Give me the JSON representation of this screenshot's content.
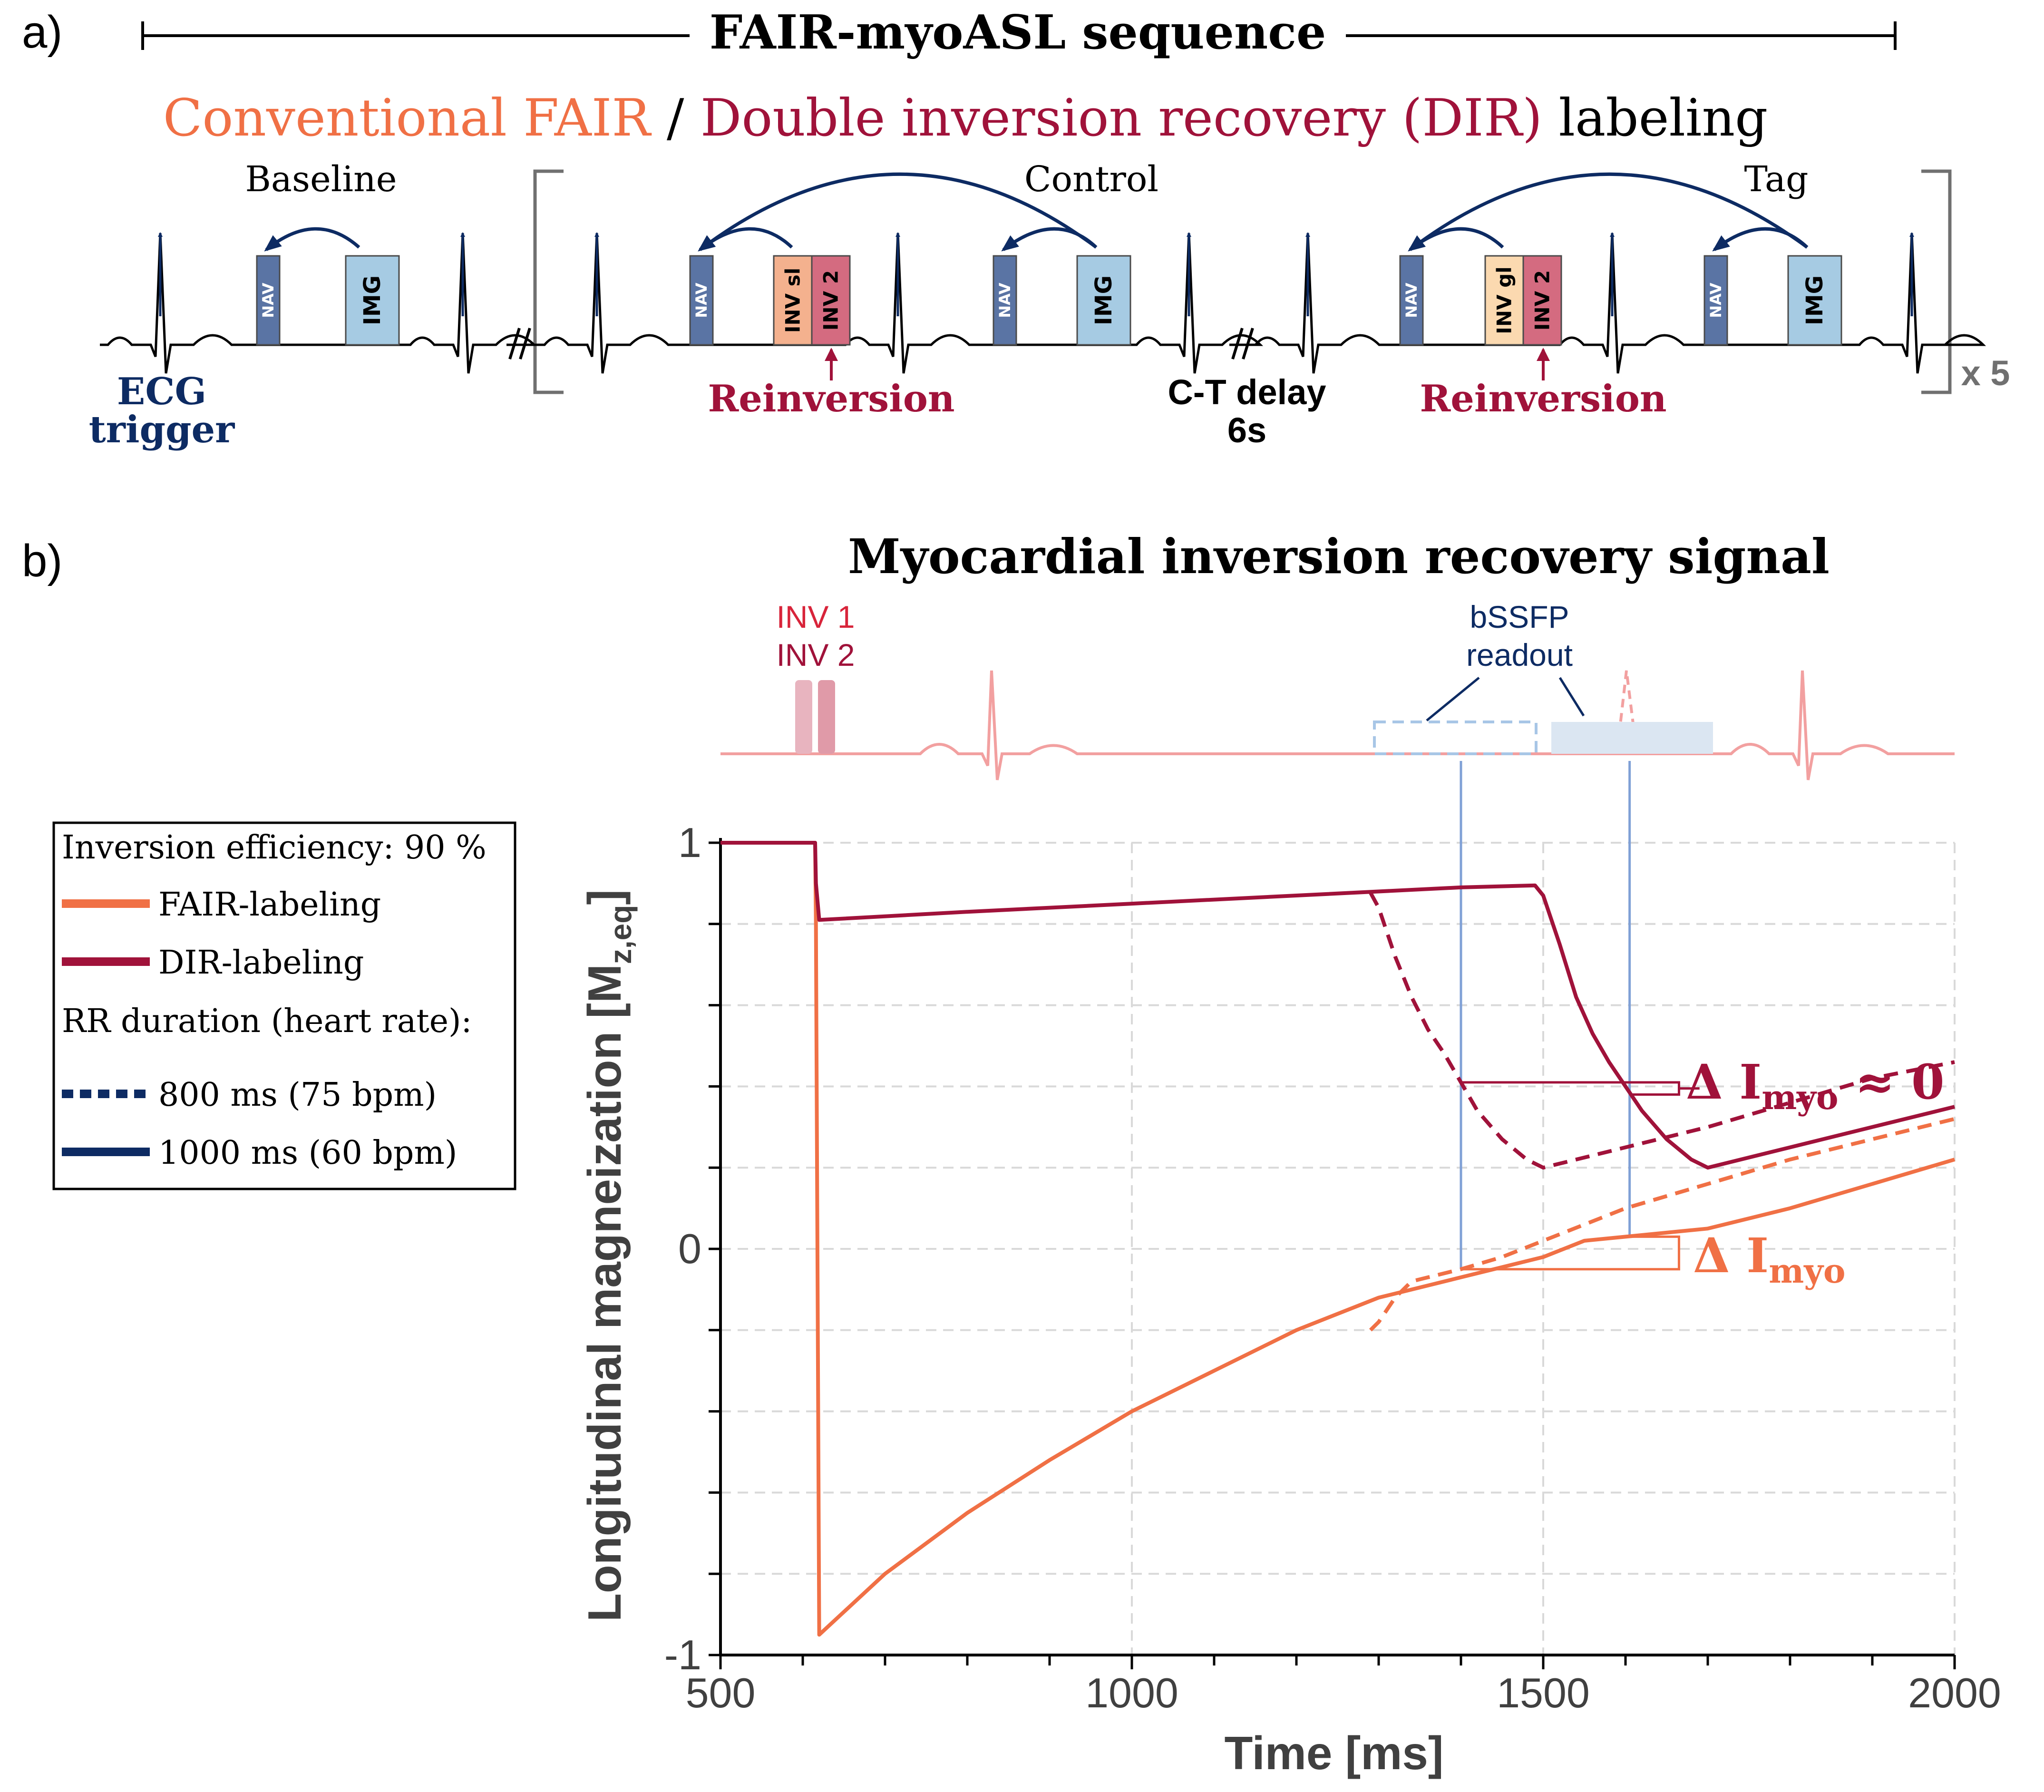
{
  "panel_a": {
    "letter": "a)",
    "title": "FAIR-myoASL sequence",
    "subtitle": {
      "part1": "Conventional FAIR",
      "sep": " / ",
      "part2": "Double inversion recovery (DIR)",
      "part3": " labeling"
    },
    "segments": {
      "baseline": "Baseline",
      "control": "Control",
      "tag": "Tag"
    },
    "blocks": {
      "nav": "NAV",
      "img": "IMG",
      "inv_sl": "INV sl",
      "inv_gl": "INV gl",
      "inv2": "INV 2"
    },
    "ecg_trigger": [
      "ECG",
      "trigger"
    ],
    "reinversion": "Reinversion",
    "ct_delay": [
      "C-T delay",
      "6s"
    ],
    "repeat": "x 5",
    "colors": {
      "fair": "#f07045",
      "dir": "#a0123a",
      "navy": "#0d2b63",
      "nav_block": "#5a74a4",
      "img_block": "#a6cbe3",
      "inv_sl_block": "#f4b18e",
      "inv_gl_block": "#fbd9b0",
      "inv2_block": "#d46b80",
      "bracket": "#707070"
    }
  },
  "panel_b": {
    "letter": "b)",
    "title": "Myocardial inversion recovery signal",
    "inv1": "INV 1",
    "inv2": "INV 2",
    "readout": [
      "bSSFP",
      "readout"
    ],
    "delta_dir": {
      "main": "Δ I",
      "sub": "myo",
      "suffix": " ≈ 0"
    },
    "delta_fair": {
      "main": "Δ I",
      "sub": "myo"
    },
    "legend": {
      "efficiency": "Inversion efficiency: 90 %",
      "fair": "FAIR-labeling",
      "dir": "DIR-labeling",
      "rr_title": "RR duration (heart rate):",
      "rr800": "800 ms (75 bpm)",
      "rr1000": "1000 ms (60 bpm)"
    }
  },
  "chart_data": {
    "type": "line",
    "xlabel": "Time [ms]",
    "ylabel": "Longitudinal magneization [M",
    "ylabel_sub": "z,eq",
    "ylabel_close": "]",
    "xlim": [
      500,
      2000
    ],
    "ylim": [
      -1,
      1
    ],
    "x_ticks": [
      500,
      1000,
      1500,
      2000
    ],
    "y_ticks": [
      -1,
      0,
      1
    ],
    "grid": true,
    "legend_position": "left",
    "series": [
      {
        "name": "FAIR-labeling",
        "rr": "1000 ms (60 bpm)",
        "color": "#f07045",
        "dash": false,
        "x": [
          500,
          615,
          616,
          620,
          700,
          800,
          900,
          1000,
          1100,
          1200,
          1300,
          1400,
          1500,
          1550,
          1600,
          1700,
          1800,
          1900,
          2000
        ],
        "y": [
          1,
          1,
          0.8,
          -0.95,
          -0.8,
          -0.65,
          -0.52,
          -0.4,
          -0.3,
          -0.2,
          -0.12,
          -0.07,
          -0.02,
          0.02,
          0.03,
          0.05,
          0.1,
          0.16,
          0.22
        ]
      },
      {
        "name": "FAIR-labeling",
        "rr": "800 ms (75 bpm)",
        "color": "#f07045",
        "dash": true,
        "x": [
          1290,
          1300,
          1320,
          1340,
          1360,
          1380,
          1400,
          1450,
          1500,
          1550,
          1600,
          1700,
          1800,
          1900,
          2000
        ],
        "y": [
          -0.2,
          -0.18,
          -0.12,
          -0.08,
          -0.07,
          -0.06,
          -0.05,
          -0.02,
          0.02,
          0.06,
          0.1,
          0.16,
          0.22,
          0.27,
          0.32
        ]
      },
      {
        "name": "DIR-labeling",
        "rr": "1000 ms (60 bpm)",
        "color": "#a0123a",
        "dash": false,
        "x": [
          500,
          615,
          616,
          620,
          800,
          1000,
          1200,
          1400,
          1490,
          1500,
          1520,
          1540,
          1560,
          1580,
          1600,
          1620,
          1650,
          1680,
          1700,
          1800,
          1900,
          2000
        ],
        "y": [
          1,
          1,
          0.9,
          0.81,
          0.83,
          0.85,
          0.87,
          0.89,
          0.895,
          0.87,
          0.75,
          0.62,
          0.53,
          0.46,
          0.4,
          0.34,
          0.27,
          0.22,
          0.2,
          0.25,
          0.3,
          0.35
        ]
      },
      {
        "name": "DIR-labeling",
        "rr": "800 ms (75 bpm)",
        "color": "#a0123a",
        "dash": true,
        "x": [
          1290,
          1300,
          1320,
          1340,
          1360,
          1380,
          1400,
          1420,
          1450,
          1480,
          1500,
          1600,
          1700,
          1800,
          1900,
          2000
        ],
        "y": [
          0.877,
          0.84,
          0.72,
          0.62,
          0.54,
          0.48,
          0.41,
          0.34,
          0.27,
          0.22,
          0.2,
          0.25,
          0.3,
          0.36,
          0.42,
          0.46
        ]
      }
    ],
    "readout_markers_x": [
      1400,
      1605
    ]
  }
}
